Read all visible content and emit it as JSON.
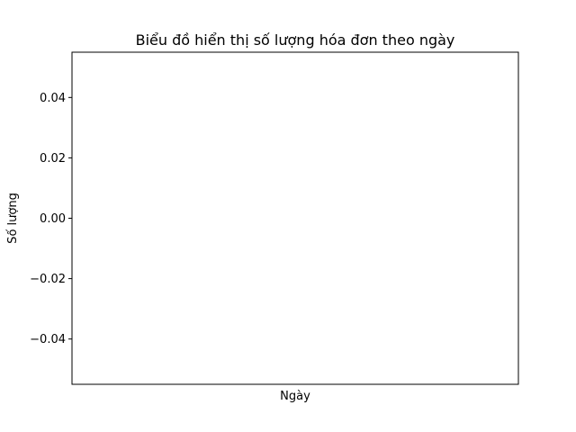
{
  "chart_data": {
    "type": "line",
    "title": "Biểu đồ hiển thị số lượng hóa đơn theo ngày",
    "xlabel": "Ngày",
    "ylabel": "Số lượng",
    "x": [],
    "series": [
      {
        "values": []
      }
    ],
    "ylim": [
      -0.055,
      0.055
    ],
    "yticks": [
      {
        "value": 0.04,
        "label": "0.04"
      },
      {
        "value": 0.02,
        "label": "0.02"
      },
      {
        "value": 0.0,
        "label": "0.00"
      },
      {
        "value": -0.02,
        "label": "−0.02"
      },
      {
        "value": -0.04,
        "label": "−0.04"
      }
    ],
    "xticks": [],
    "grid": false,
    "legend": "none"
  }
}
